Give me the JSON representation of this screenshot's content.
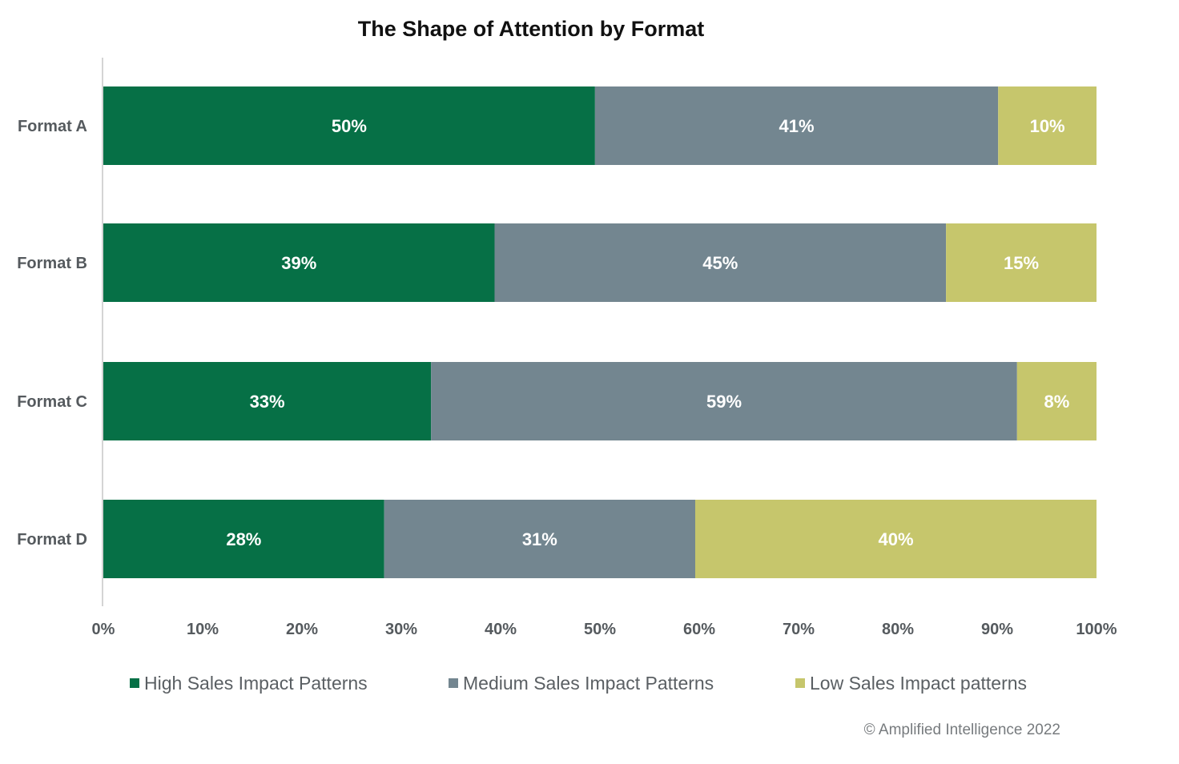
{
  "chart_data": {
    "type": "bar",
    "orientation": "horizontal",
    "stacked": true,
    "title": "The Shape of Attention by Format",
    "categories": [
      "Format A",
      "Format B",
      "Format C",
      "Format D"
    ],
    "series": [
      {
        "name": "High Sales Impact Patterns",
        "color": "#067046",
        "values": [
          50,
          39,
          33,
          28
        ],
        "labels": [
          "50%",
          "39%",
          "33%",
          "28%"
        ]
      },
      {
        "name": "Medium Sales Impact Patterns",
        "color": "#738690",
        "values": [
          41,
          45,
          59,
          31
        ],
        "labels": [
          "41%",
          "45%",
          "59%",
          "31%"
        ]
      },
      {
        "name": "Low Sales Impact patterns",
        "color": "#c6c66c",
        "values": [
          10,
          15,
          8,
          40
        ],
        "labels": [
          "10%",
          "15%",
          "8%",
          "40%"
        ]
      }
    ],
    "xlim": [
      0,
      100
    ],
    "xticks": [
      0,
      10,
      20,
      30,
      40,
      50,
      60,
      70,
      80,
      90,
      100
    ],
    "xtick_labels": [
      "0%",
      "10%",
      "20%",
      "30%",
      "40%",
      "50%",
      "60%",
      "70%",
      "80%",
      "90%",
      "100%"
    ],
    "xlabel": "",
    "ylabel": "",
    "grid": false,
    "legend_position": "bottom"
  },
  "footer": {
    "copyright": "© Amplified Intelligence 2022"
  }
}
